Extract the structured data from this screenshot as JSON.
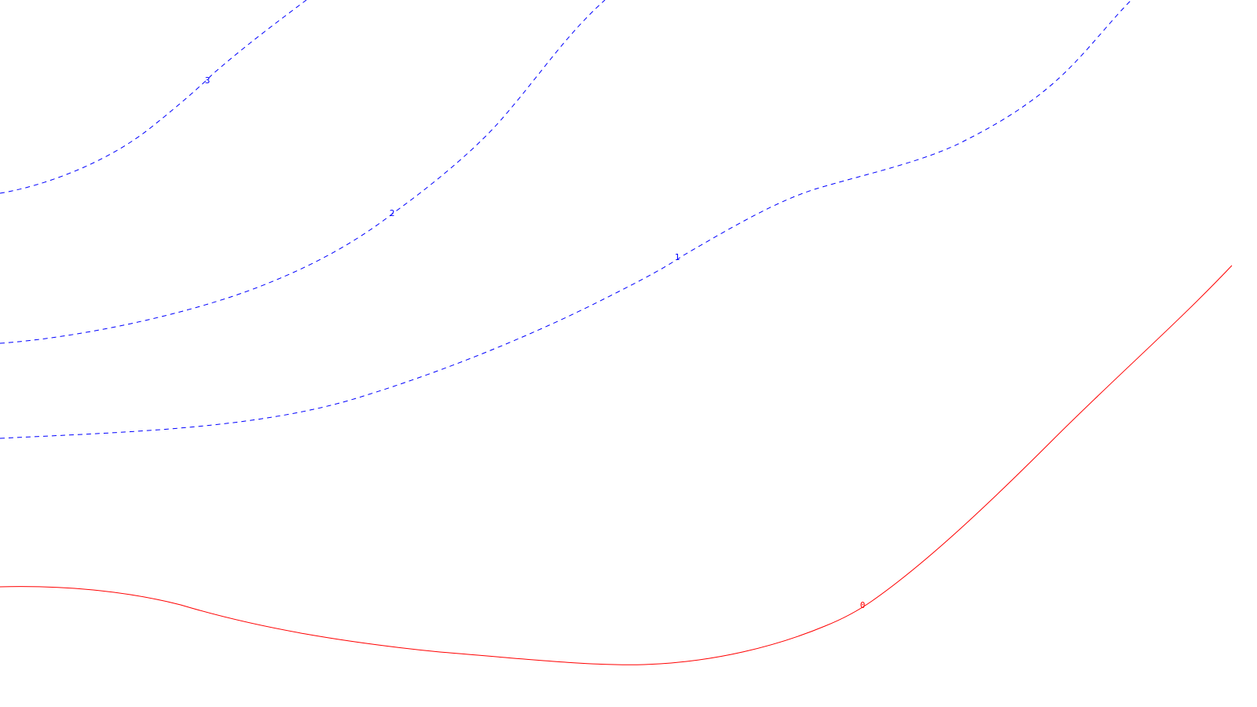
{
  "chart_data": {
    "type": "contour",
    "title": "",
    "xlabel": "",
    "ylabel": "",
    "axes_visible": false,
    "grid": false,
    "legend": "none",
    "colors": {
      "positive": "#0000ff",
      "zero": "#ff0000",
      "background": "#ffffff"
    },
    "contours": [
      {
        "level": 3,
        "label": "3",
        "style": "dashed",
        "color": "#0000ff"
      },
      {
        "level": 2,
        "label": "2",
        "style": "dashed",
        "color": "#0000ff"
      },
      {
        "level": 1,
        "label": "1",
        "style": "dashed",
        "color": "#0000ff"
      },
      {
        "level": 0,
        "label": "0",
        "style": "solid",
        "color": "#ff0000"
      }
    ]
  }
}
